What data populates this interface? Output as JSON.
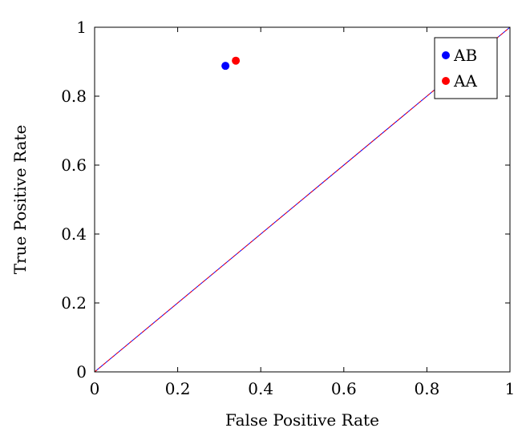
{
  "chart_data": {
    "type": "scatter",
    "title": "",
    "xlabel": "False Positive Rate",
    "ylabel": "True Positive Rate",
    "xlim": [
      0,
      1
    ],
    "ylim": [
      0,
      1
    ],
    "xticks": [
      0,
      0.2,
      0.4,
      0.6,
      0.8,
      1
    ],
    "yticks": [
      0,
      0.2,
      0.4,
      0.6,
      0.8,
      1
    ],
    "xtick_labels": [
      "0",
      "0.2",
      "0.4",
      "0.6",
      "0.8",
      "1"
    ],
    "ytick_labels": [
      "0",
      "0.2",
      "0.4",
      "0.6",
      "0.8",
      "1"
    ],
    "grid": false,
    "legend_position": "top-right",
    "series": [
      {
        "name": "AB",
        "color": "#0000ff",
        "x": [
          0.315
        ],
        "y": [
          0.888
        ]
      },
      {
        "name": "AA",
        "color": "#ff0000",
        "x": [
          0.34
        ],
        "y": [
          0.903
        ]
      }
    ],
    "reference_lines": [
      {
        "name": "diagonal-blue",
        "color": "#0000ff",
        "x": [
          0,
          1
        ],
        "y": [
          0,
          1
        ],
        "dashed": false
      },
      {
        "name": "diagonal-red",
        "color": "#ff0000",
        "x": [
          0,
          1
        ],
        "y": [
          0,
          1
        ],
        "dashed": true
      }
    ]
  }
}
